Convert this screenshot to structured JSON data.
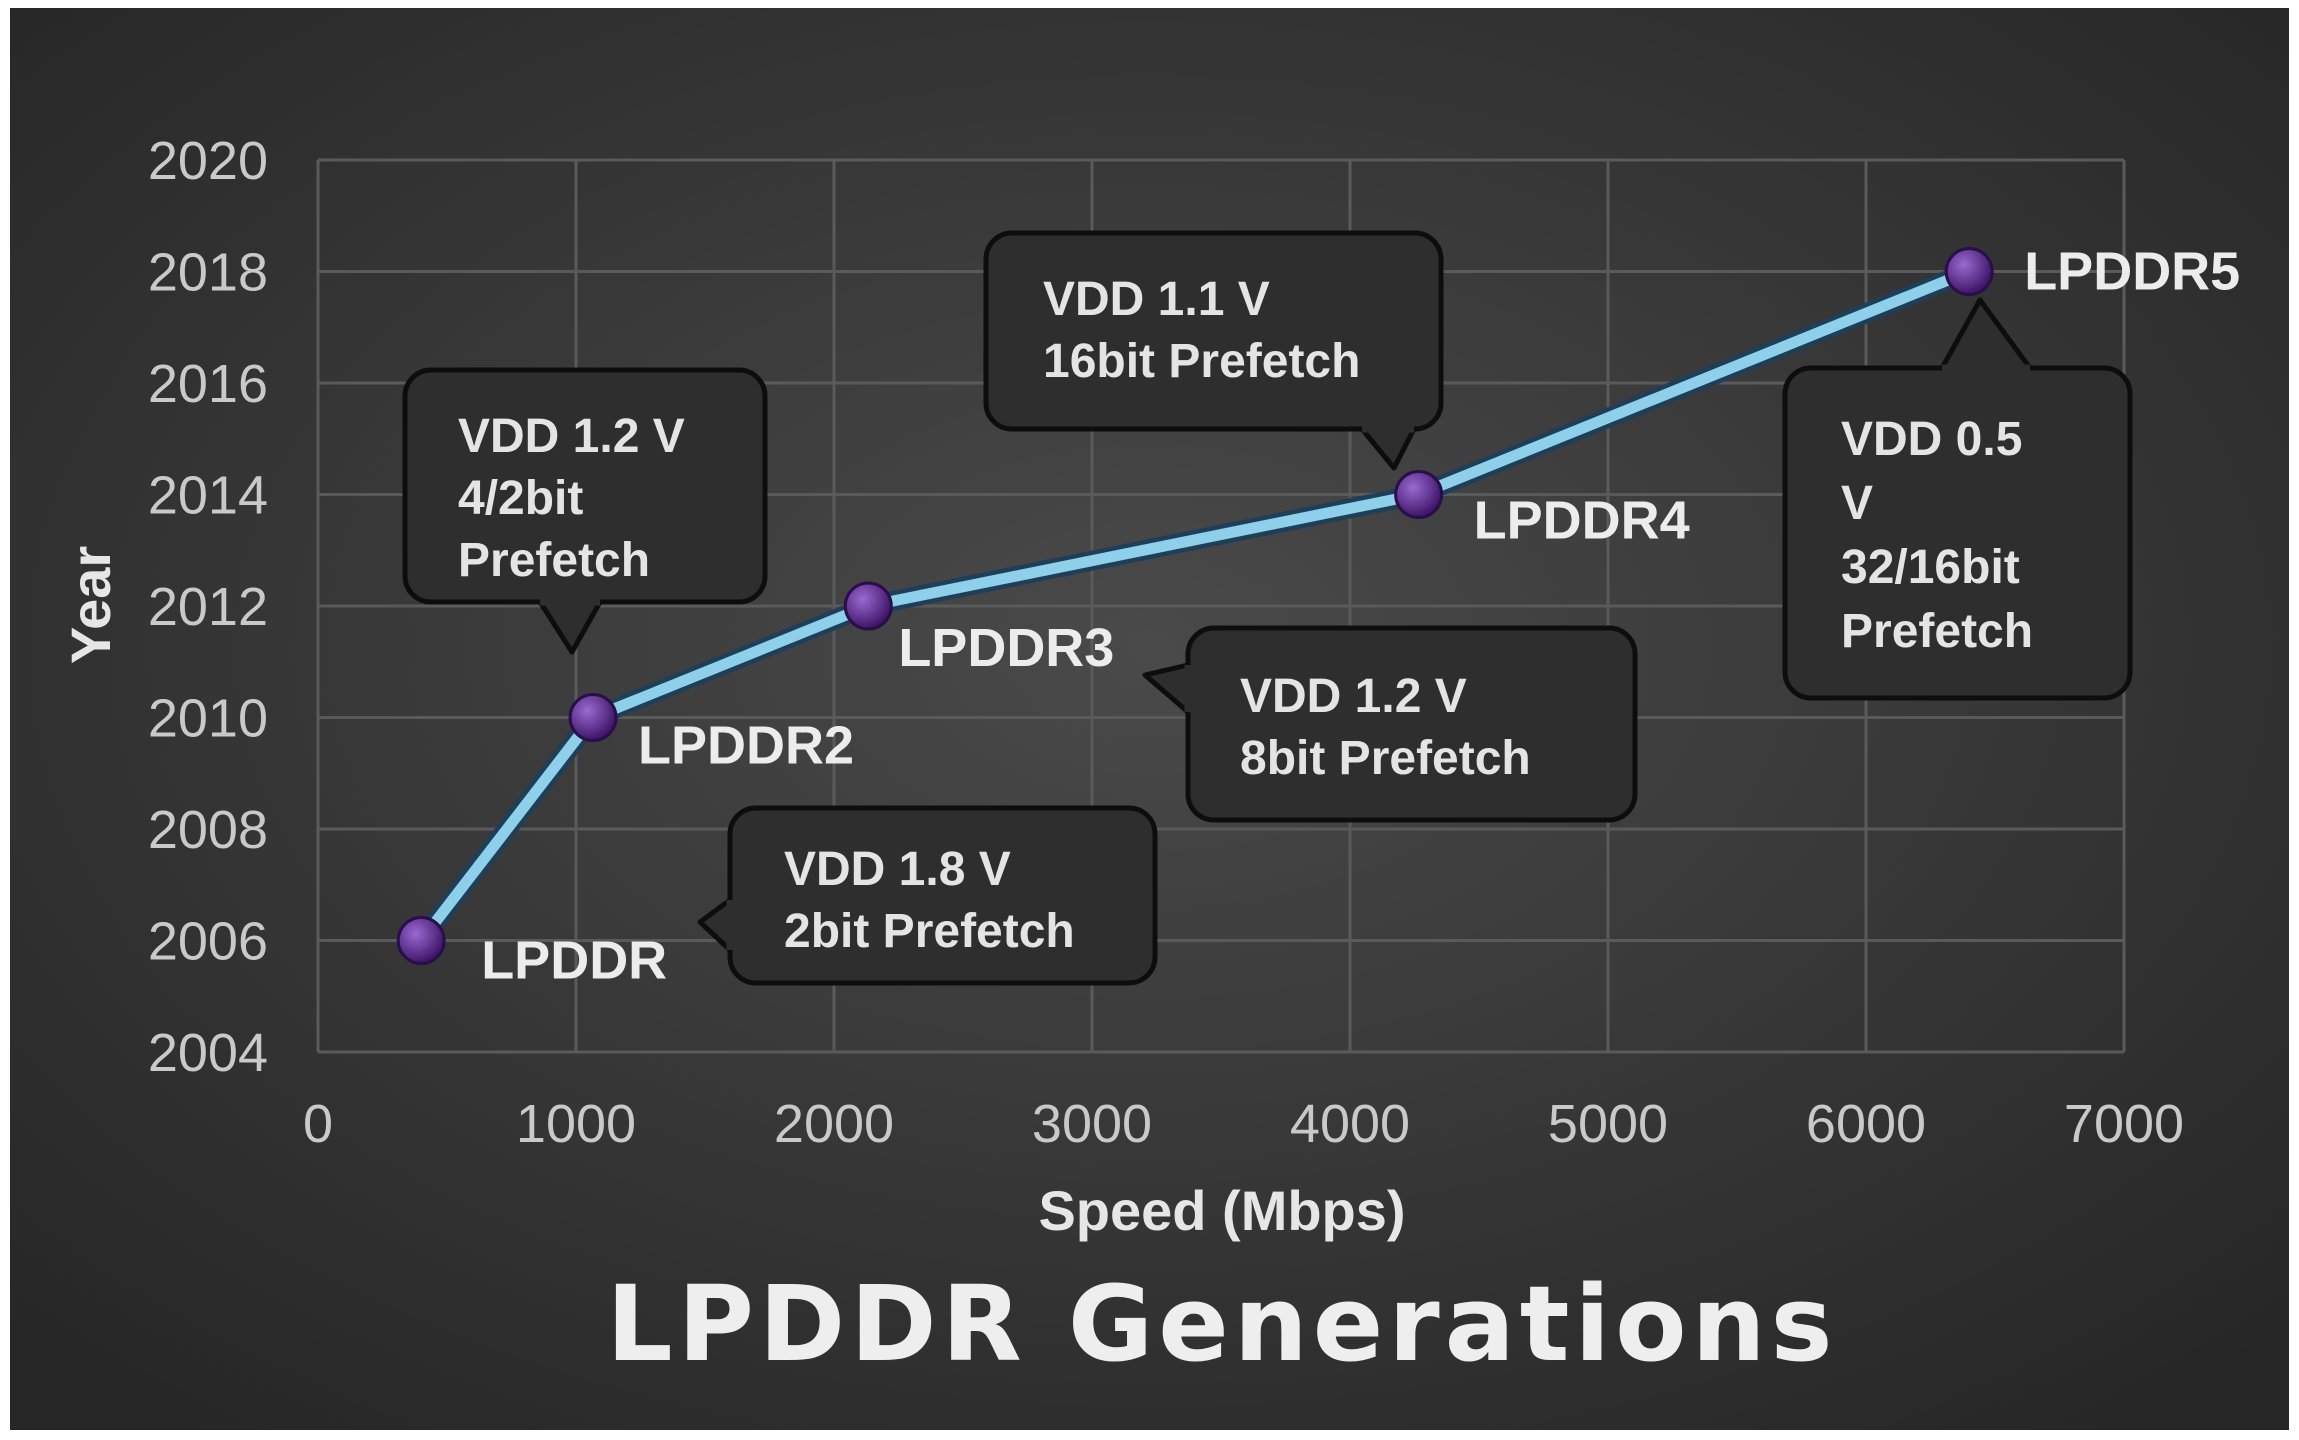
{
  "chart_data": {
    "type": "line",
    "title": "LPDDR Generations",
    "xlabel": "Speed (Mbps)",
    "ylabel": "Year",
    "xlim": [
      0,
      7000
    ],
    "ylim": [
      2004,
      2020
    ],
    "x_ticks": [
      "0",
      "1000",
      "2000",
      "3000",
      "4000",
      "5000",
      "6000",
      "7000"
    ],
    "y_ticks": [
      "2020",
      "2018",
      "2016",
      "2014",
      "2012",
      "2010",
      "2008",
      "2006",
      "2004"
    ],
    "grid": true,
    "series": [
      {
        "points": [
          {
            "label": "LPDDR",
            "x": 400,
            "y": 2006
          },
          {
            "label": "LPDDR2",
            "x": 1066,
            "y": 2010
          },
          {
            "label": "LPDDR3",
            "x": 2133,
            "y": 2012
          },
          {
            "label": "LPDDR4",
            "x": 4266,
            "y": 2014
          },
          {
            "label": "LPDDR5",
            "x": 6400,
            "y": 2018
          }
        ]
      }
    ],
    "annotations": [
      {
        "point": "LPDDR",
        "lines": [
          "VDD 1.8 V",
          "2bit Prefetch"
        ]
      },
      {
        "point": "LPDDR2",
        "lines": [
          "VDD 1.2 V",
          "4/2bit",
          "Prefetch"
        ]
      },
      {
        "point": "LPDDR3",
        "lines": [
          "VDD 1.2 V",
          "8bit Prefetch"
        ]
      },
      {
        "point": "LPDDR4",
        "lines": [
          "VDD 1.1 V",
          "16bit Prefetch"
        ]
      },
      {
        "point": "LPDDR5",
        "lines": [
          "VDD 0.5",
          "V",
          "32/16bit",
          "Prefetch"
        ]
      }
    ],
    "colors": {
      "background": "#3a3a3a",
      "line": "#8ed0ea",
      "marker": "#5b2a8c",
      "grid": "#5a5a5a"
    }
  }
}
